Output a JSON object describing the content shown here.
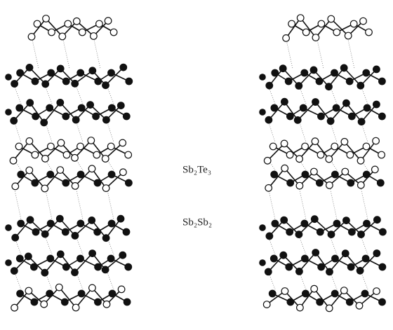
{
  "labels": {
    "top": "Sb₂Te₃",
    "bottom": "Sb₂Sb₂"
  }
}
